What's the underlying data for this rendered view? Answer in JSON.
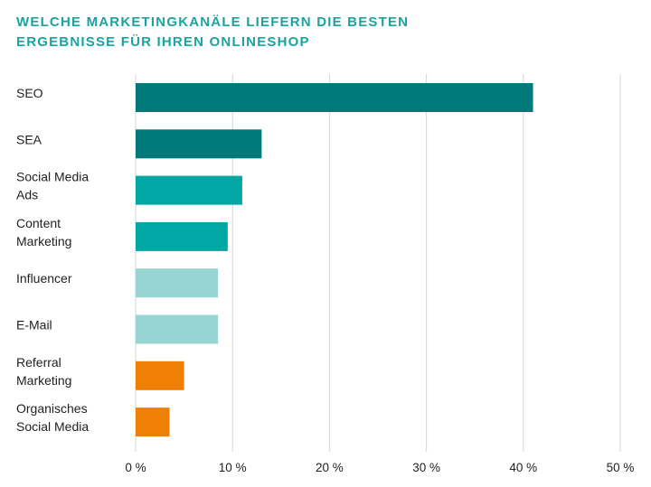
{
  "title_lines": [
    "WELCHE MARKETINGKANÄLE LIEFERN DIE BESTEN",
    "ERGEBNISSE FÜR IHREN ONLINESHOP"
  ],
  "chart_data": {
    "type": "bar",
    "orientation": "horizontal",
    "title": "WELCHE MARKETINGKANÄLE LIEFERN DIE BESTEN ERGEBNISSE FÜR IHREN ONLINESHOP",
    "categories": [
      [
        "SEO"
      ],
      [
        "SEA"
      ],
      [
        "Social Media",
        "Ads"
      ],
      [
        "Content",
        "Marketing"
      ],
      [
        "Influencer"
      ],
      [
        "E-Mail"
      ],
      [
        "Referral",
        "Marketing"
      ],
      [
        "Organisches",
        "Social Media"
      ]
    ],
    "values": [
      41,
      13,
      11,
      9.5,
      8.5,
      8.5,
      5,
      3.5
    ],
    "colors": [
      "#00797a",
      "#00797a",
      "#00a7a5",
      "#00a7a5",
      "#96d5d4",
      "#96d5d4",
      "#f07f06",
      "#f07f06"
    ],
    "xlim": [
      0,
      50
    ],
    "xticks": [
      0,
      10,
      20,
      30,
      40,
      50
    ],
    "xtick_labels": [
      "0 %",
      "10 %",
      "20 %",
      "30 %",
      "40 %",
      "50 %"
    ],
    "grid": true,
    "xlabel": "",
    "ylabel": ""
  }
}
